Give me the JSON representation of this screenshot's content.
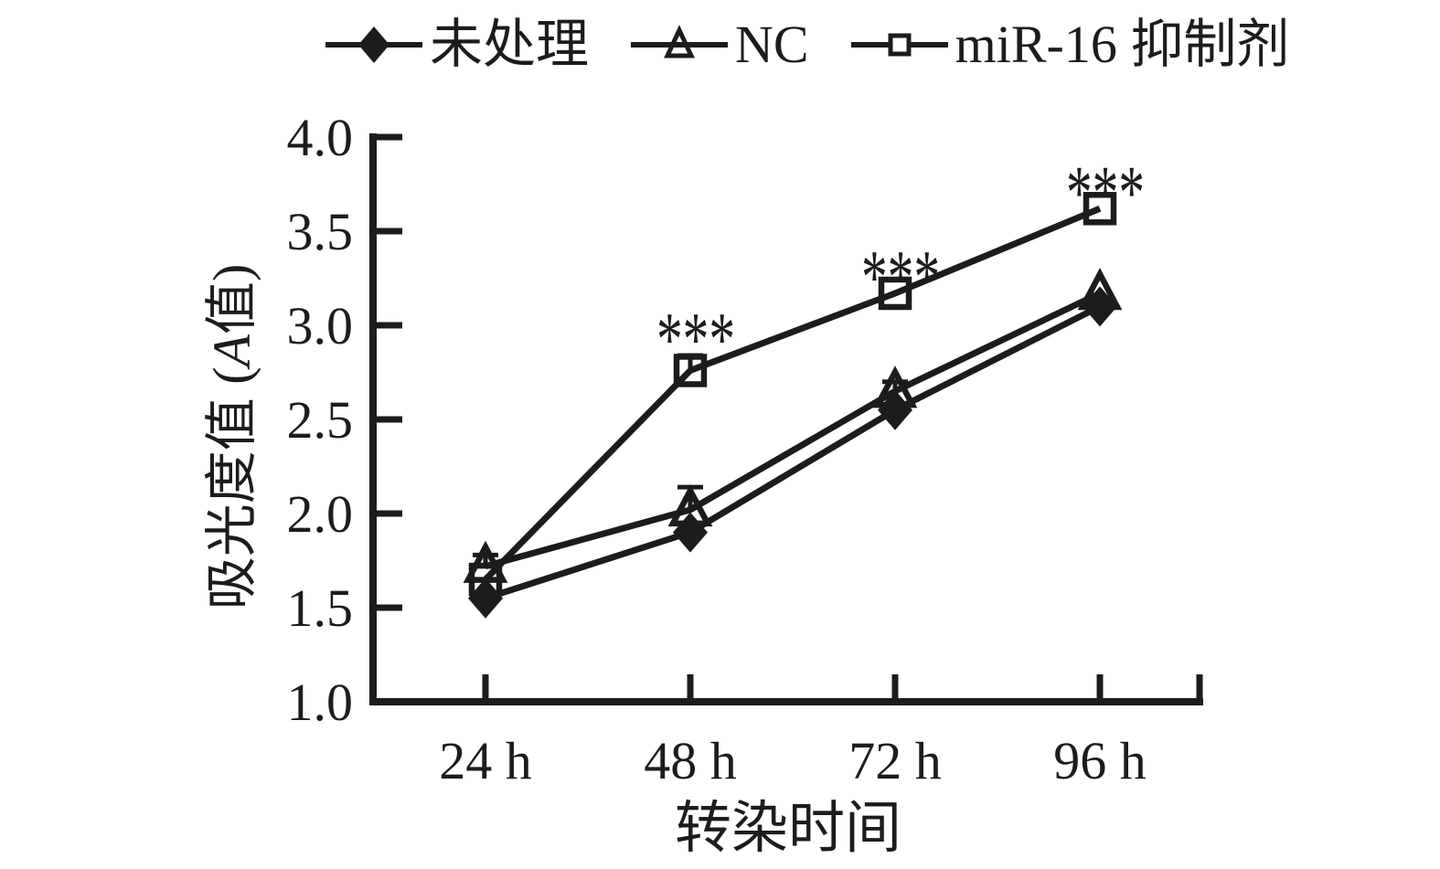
{
  "chart_data": {
    "type": "line",
    "categories": [
      "24 h",
      "48 h",
      "72 h",
      "96 h"
    ],
    "series": [
      {
        "name": "未处理",
        "marker": "diamond-filled",
        "values": [
          1.55,
          1.9,
          2.55,
          3.1
        ],
        "errors": [
          0,
          0,
          0,
          0
        ]
      },
      {
        "name": "NC",
        "marker": "triangle-open",
        "values": [
          1.72,
          2.02,
          2.65,
          3.17
        ],
        "errors": [
          0.06,
          0.12,
          0.05,
          0
        ]
      },
      {
        "name": "miR-16 抑制剂",
        "marker": "square-open",
        "values": [
          1.65,
          2.76,
          3.17,
          3.62
        ],
        "errors": [
          0,
          0.08,
          0,
          0
        ]
      }
    ],
    "annotations": [
      {
        "text": "***",
        "series": "miR-16 抑制剂",
        "category": "48 h"
      },
      {
        "text": "***",
        "series": "miR-16 抑制剂",
        "category": "72 h"
      },
      {
        "text": "***",
        "series": "miR-16 抑制剂",
        "category": "96 h"
      }
    ],
    "title": "",
    "xlabel": "转染时间",
    "ylabel": "吸光度值 (A值)",
    "ylim": [
      1.0,
      4.0
    ],
    "ytick_step": 0.5,
    "ytick_decimals": 1,
    "grid": false,
    "legend_position": "top",
    "line_color": "#1c1c1c",
    "background_color": "#ffffff"
  },
  "axis_titles": {
    "y_prefix": "吸光度值 (",
    "y_italic": "A",
    "y_suffix": "值)",
    "x": "转染时间"
  }
}
